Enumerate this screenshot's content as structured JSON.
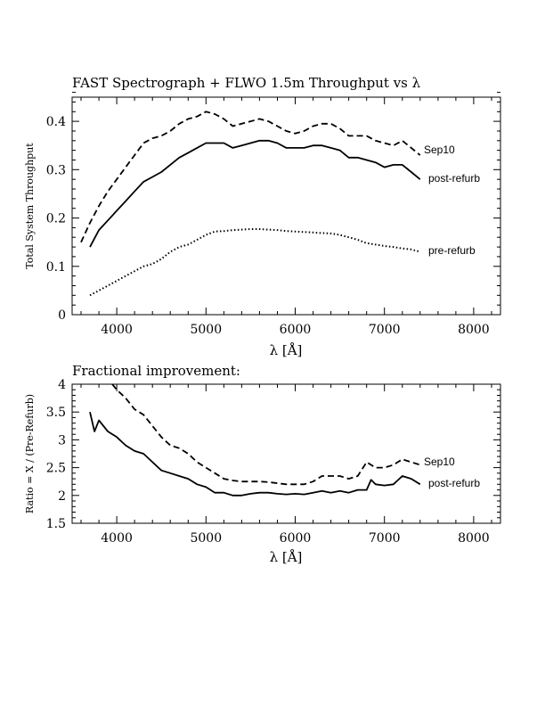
{
  "chart_data": [
    {
      "type": "line",
      "title": "FAST Spectrograph + FLWO 1.5m Throughput vs λ",
      "xlabel": "λ [Å]",
      "ylabel": "Total System Throughput",
      "xlim": [
        3500,
        8300
      ],
      "ylim": [
        0,
        0.45
      ],
      "xticks": [
        4000,
        5000,
        6000,
        7000,
        8000
      ],
      "xtick_labels": [
        "4000",
        "5000",
        "6000",
        "7000",
        "8000"
      ],
      "yticks": [
        0,
        0.1,
        0.2,
        0.3,
        0.4
      ],
      "ytick_labels": [
        "0",
        "0.1",
        "0.2",
        "0.3",
        "0.4"
      ],
      "grid": false,
      "series": [
        {
          "name": "Sep10",
          "style": "dashed",
          "x": [
            3600,
            3700,
            3800,
            3900,
            4000,
            4100,
            4200,
            4300,
            4400,
            4500,
            4600,
            4700,
            4800,
            4900,
            5000,
            5100,
            5200,
            5300,
            5400,
            5500,
            5600,
            5700,
            5800,
            5900,
            6000,
            6100,
            6200,
            6300,
            6400,
            6500,
            6600,
            6700,
            6800,
            6900,
            7000,
            7100,
            7200,
            7300,
            7400
          ],
          "y": [
            0.15,
            0.19,
            0.225,
            0.255,
            0.28,
            0.305,
            0.33,
            0.355,
            0.365,
            0.37,
            0.38,
            0.395,
            0.405,
            0.41,
            0.42,
            0.415,
            0.405,
            0.39,
            0.395,
            0.4,
            0.405,
            0.4,
            0.39,
            0.38,
            0.375,
            0.38,
            0.39,
            0.395,
            0.395,
            0.385,
            0.37,
            0.37,
            0.37,
            0.36,
            0.355,
            0.35,
            0.36,
            0.345,
            0.33
          ]
        },
        {
          "name": "post-refurb",
          "style": "solid",
          "x": [
            3700,
            3800,
            3900,
            4000,
            4100,
            4200,
            4300,
            4400,
            4500,
            4600,
            4700,
            4800,
            4900,
            5000,
            5100,
            5200,
            5300,
            5400,
            5500,
            5600,
            5700,
            5800,
            5900,
            6000,
            6100,
            6200,
            6300,
            6400,
            6500,
            6600,
            6700,
            6800,
            6900,
            7000,
            7100,
            7200,
            7300,
            7400
          ],
          "y": [
            0.14,
            0.175,
            0.195,
            0.215,
            0.235,
            0.255,
            0.275,
            0.285,
            0.295,
            0.31,
            0.325,
            0.335,
            0.345,
            0.355,
            0.355,
            0.355,
            0.345,
            0.35,
            0.355,
            0.36,
            0.36,
            0.355,
            0.345,
            0.345,
            0.345,
            0.35,
            0.35,
            0.345,
            0.34,
            0.325,
            0.325,
            0.32,
            0.315,
            0.305,
            0.31,
            0.31,
            0.295,
            0.28
          ]
        },
        {
          "name": "pre-refurb",
          "style": "dotted",
          "x": [
            3700,
            3800,
            3900,
            4000,
            4100,
            4200,
            4300,
            4400,
            4500,
            4600,
            4700,
            4800,
            4900,
            5000,
            5100,
            5200,
            5300,
            5400,
            5500,
            5600,
            5700,
            5800,
            5900,
            6000,
            6100,
            6200,
            6300,
            6400,
            6500,
            6600,
            6700,
            6800,
            6900,
            7000,
            7100,
            7200,
            7300,
            7400
          ],
          "y": [
            0.04,
            0.05,
            0.06,
            0.07,
            0.08,
            0.09,
            0.1,
            0.105,
            0.115,
            0.13,
            0.14,
            0.145,
            0.155,
            0.165,
            0.172,
            0.173,
            0.175,
            0.176,
            0.177,
            0.177,
            0.176,
            0.175,
            0.173,
            0.172,
            0.171,
            0.17,
            0.169,
            0.168,
            0.165,
            0.16,
            0.155,
            0.148,
            0.145,
            0.142,
            0.14,
            0.137,
            0.135,
            0.13
          ]
        }
      ],
      "annotations": [
        "Sep10",
        "post-refurb",
        "pre-refurb"
      ]
    },
    {
      "type": "line",
      "title": "Fractional improvement:",
      "xlabel": "λ [Å]",
      "ylabel": "Ratio = X / (Pre-Refurb)",
      "xlim": [
        3500,
        8300
      ],
      "ylim": [
        1.5,
        4
      ],
      "xticks": [
        4000,
        5000,
        6000,
        7000,
        8000
      ],
      "xtick_labels": [
        "4000",
        "5000",
        "6000",
        "7000",
        "8000"
      ],
      "yticks": [
        1.5,
        2,
        2.5,
        3,
        3.5,
        4
      ],
      "ytick_labels": [
        "1.5",
        "2",
        "2.5",
        "3",
        "3.5",
        "4"
      ],
      "grid": false,
      "series": [
        {
          "name": "Sep10",
          "style": "dashed",
          "x": [
            3950,
            4000,
            4100,
            4200,
            4300,
            4400,
            4500,
            4600,
            4700,
            4800,
            4900,
            5000,
            5100,
            5200,
            5300,
            5400,
            5500,
            5600,
            5700,
            5800,
            5900,
            6000,
            6100,
            6200,
            6300,
            6400,
            6500,
            6600,
            6700,
            6800,
            6900,
            7000,
            7100,
            7200,
            7300,
            7400
          ],
          "y": [
            4.0,
            3.9,
            3.75,
            3.55,
            3.45,
            3.25,
            3.05,
            2.9,
            2.85,
            2.75,
            2.6,
            2.5,
            2.4,
            2.3,
            2.27,
            2.25,
            2.25,
            2.25,
            2.24,
            2.22,
            2.2,
            2.2,
            2.2,
            2.25,
            2.35,
            2.35,
            2.35,
            2.3,
            2.35,
            2.6,
            2.5,
            2.5,
            2.55,
            2.65,
            2.6,
            2.55
          ]
        },
        {
          "name": "post-refurb",
          "style": "solid",
          "x": [
            3700,
            3750,
            3800,
            3900,
            4000,
            4100,
            4200,
            4300,
            4400,
            4500,
            4600,
            4700,
            4800,
            4900,
            5000,
            5100,
            5200,
            5300,
            5400,
            5500,
            5600,
            5700,
            5800,
            5900,
            6000,
            6100,
            6200,
            6300,
            6400,
            6500,
            6600,
            6700,
            6800,
            6850,
            6900,
            7000,
            7100,
            7200,
            7300,
            7400
          ],
          "y": [
            3.5,
            3.15,
            3.35,
            3.15,
            3.05,
            2.9,
            2.8,
            2.75,
            2.6,
            2.45,
            2.4,
            2.35,
            2.3,
            2.2,
            2.15,
            2.05,
            2.05,
            2.0,
            2.0,
            2.03,
            2.05,
            2.05,
            2.03,
            2.02,
            2.03,
            2.02,
            2.05,
            2.08,
            2.05,
            2.08,
            2.05,
            2.1,
            2.1,
            2.28,
            2.2,
            2.18,
            2.2,
            2.35,
            2.3,
            2.2
          ]
        }
      ],
      "annotations": [
        "Sep10",
        "post-refurb"
      ]
    }
  ]
}
